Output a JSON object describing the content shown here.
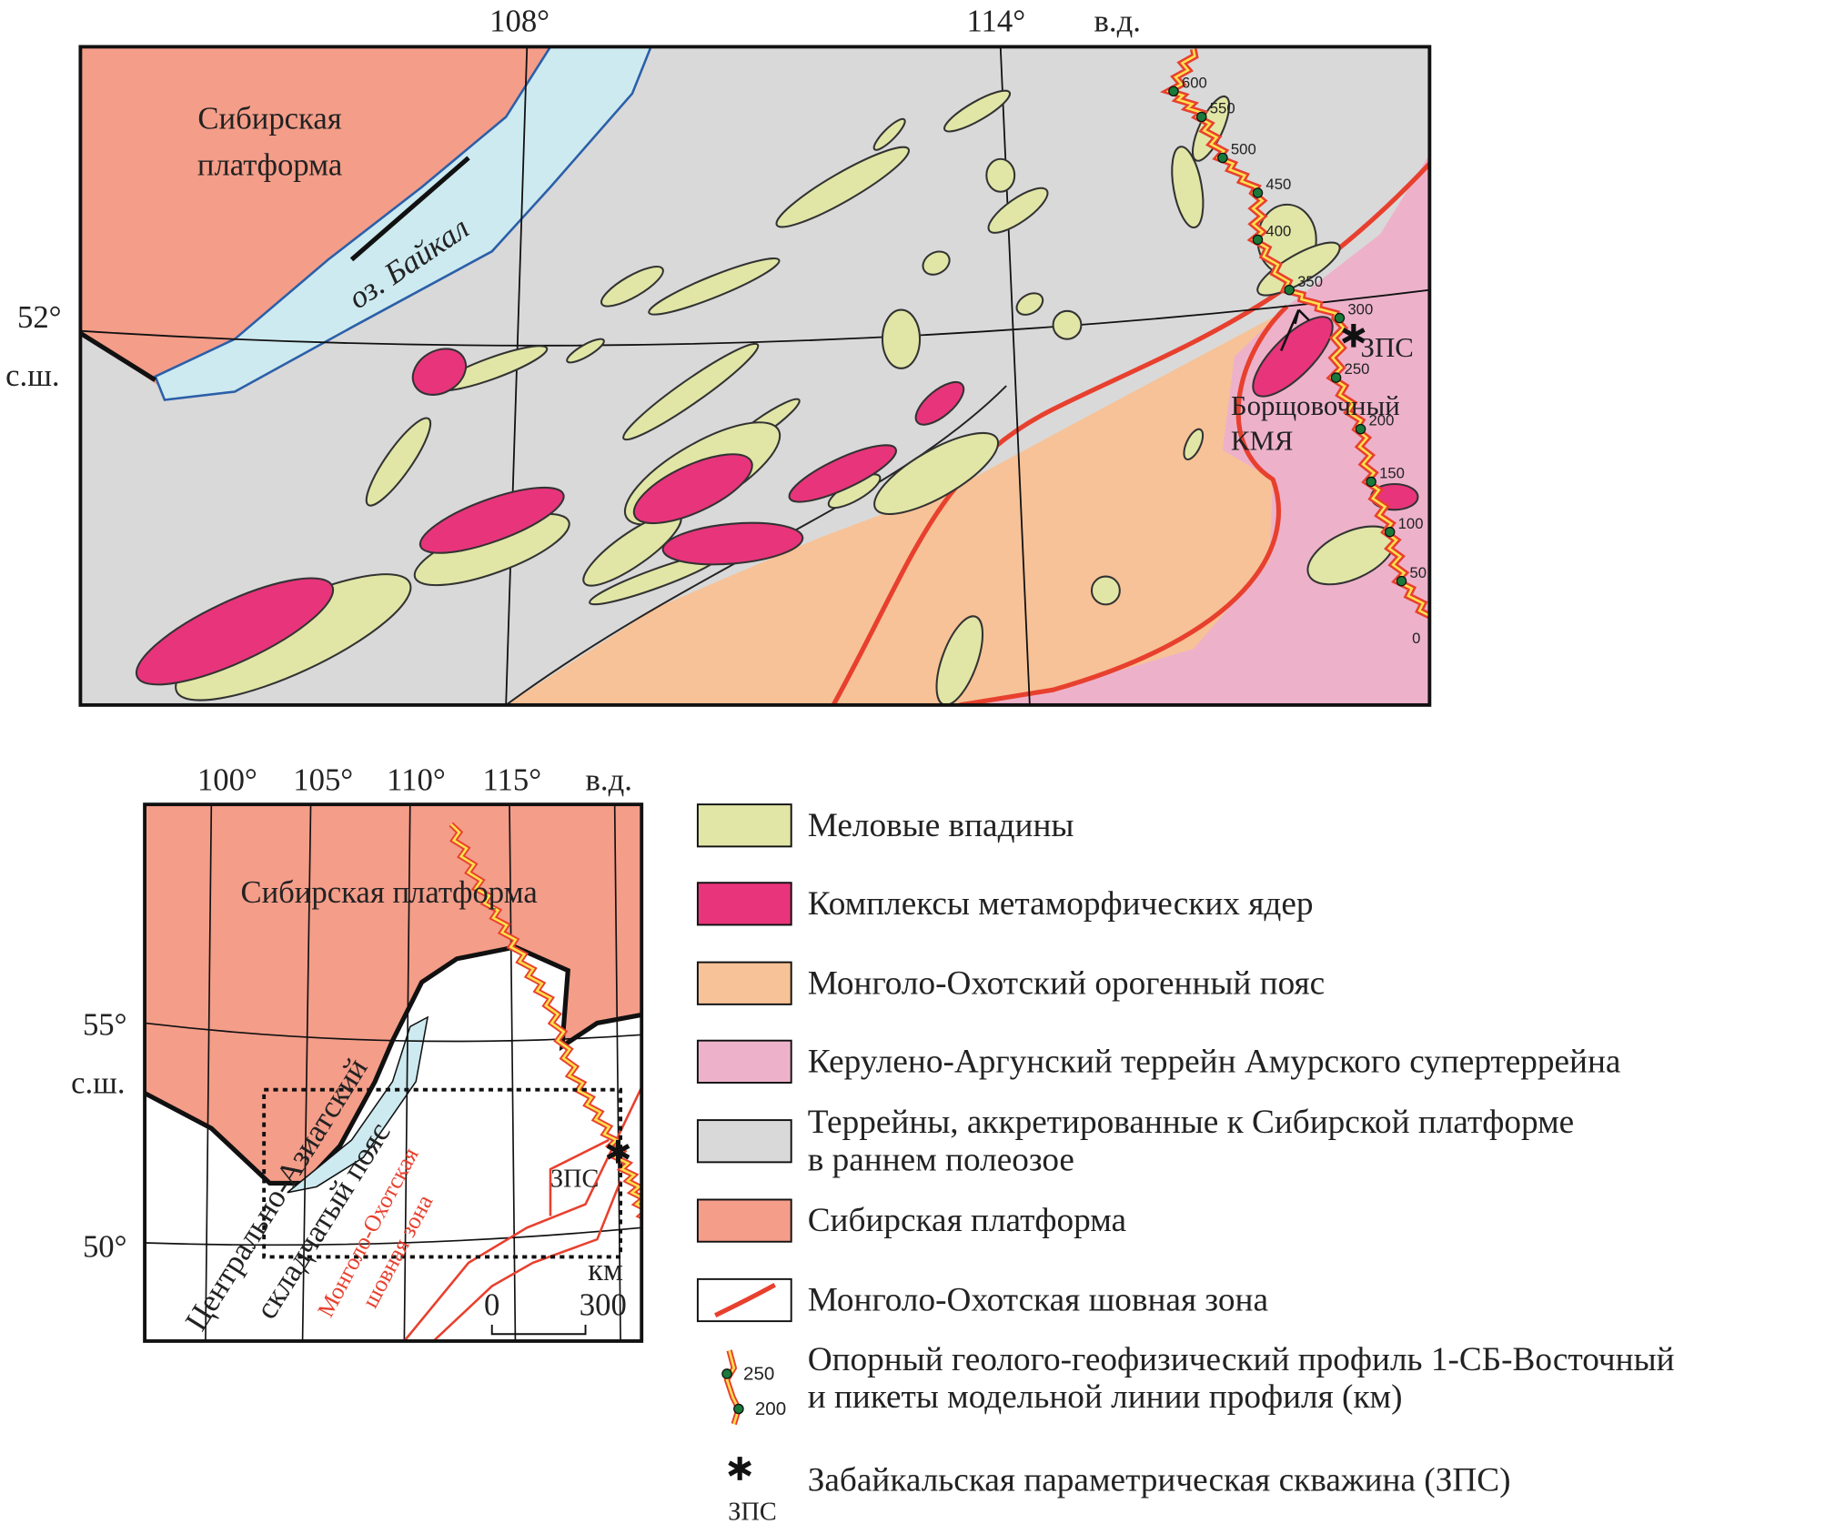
{
  "main_map": {
    "lon_labels": [
      "108°",
      "114°",
      "в.д."
    ],
    "lat_labels": [
      "52°",
      "с.ш."
    ],
    "platform": [
      "Сибирская",
      "платформа"
    ],
    "baikal": "оз. Байкал",
    "zps": "ЗПС",
    "deposit": [
      "Борщовочный",
      "КМЯ"
    ],
    "pickets": [
      "600",
      "550",
      "500",
      "450",
      "400",
      "350",
      "300",
      "250",
      "200",
      "150",
      "100",
      "50",
      "0"
    ]
  },
  "inset": {
    "lon_labels": [
      "100°",
      "105°",
      "110°",
      "115°",
      "в.д."
    ],
    "lat_labels": [
      "55°",
      "с.ш.",
      "50°"
    ],
    "platform": "Сибирская платформа",
    "belt": [
      "Центрально-Азиатский",
      "складчатый пояс"
    ],
    "suture": [
      "Монголо-Охотская",
      "шовная зона"
    ],
    "zps": "ЗПС",
    "scale": {
      "unit": "км",
      "ticks": [
        "0",
        "300"
      ]
    }
  },
  "legend": [
    {
      "lines": [
        "Меловые впадины"
      ],
      "color": "#e1e6a6"
    },
    {
      "lines": [
        "Комплексы метаморфических ядер"
      ],
      "color": "#e8347b"
    },
    {
      "lines": [
        "Монголо-Охотский орогенный пояс"
      ],
      "color": "#f7c297"
    },
    {
      "lines": [
        "Керулено-Аргунский террейн Амурского супертеррейна"
      ],
      "color": "#edb2ca"
    },
    {
      "lines": [
        "Террейны, аккретированные к Сибирской платформе",
        "в раннем полеозое"
      ],
      "color": "#d9d9d9"
    },
    {
      "lines": [
        "Сибирская платформа"
      ],
      "color": "#f49d89"
    },
    {
      "lines": [
        "Монголо-Охотская шовная зона"
      ],
      "color": "#ffffff"
    },
    {
      "lines": [
        "Опорный геолого-геофизический профиль 1-СБ-Восточный",
        "и пикеты модельной линии профиля (км)"
      ],
      "pickets": [
        "250",
        "200"
      ]
    },
    {
      "lines": [
        "Забайкальская параметрическая скважина (ЗПС)"
      ],
      "symbol_label": "ЗПС"
    }
  ]
}
